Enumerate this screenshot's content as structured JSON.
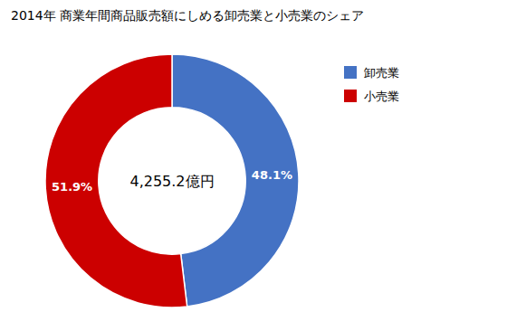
{
  "chart_data": {
    "type": "pie",
    "title": "2014年 商業年間商品販売額にしめる卸売業と小売業のシェア",
    "categories": [
      "卸売業",
      "小売業"
    ],
    "values": [
      48.1,
      51.9
    ],
    "value_labels": [
      "48.1%",
      "51.9%"
    ],
    "colors": [
      "#4472C4",
      "#CC0000"
    ],
    "data_labels": true,
    "legend": "right",
    "annotations": [
      "4,255.2億円"
    ]
  }
}
